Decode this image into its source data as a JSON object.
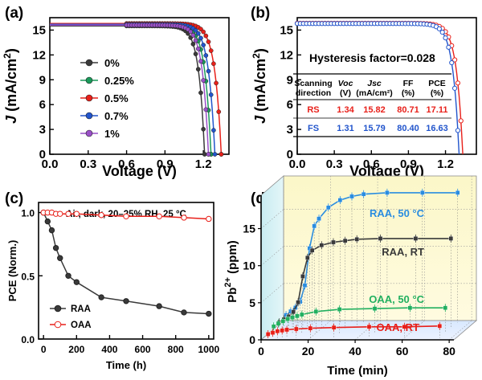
{
  "chart_data": [
    {
      "panel": "a",
      "type": "line",
      "panel_label": "(a)",
      "xlabel": "Voltage (V)",
      "ylabel_italic": "J",
      "ylabel_rest": " (mA/cm",
      "ylabel_sup": "2",
      "ylabel_end": ")",
      "xlim": [
        0,
        1.4
      ],
      "ylim": [
        0,
        16.5
      ],
      "xticks": [
        "0.0",
        "0.3",
        "0.6",
        "0.9",
        "1.2"
      ],
      "xtick_values": [
        0,
        0.3,
        0.6,
        0.9,
        1.2
      ],
      "yticks": [
        "0",
        "3",
        "6",
        "9",
        "12",
        "15"
      ],
      "ytick_values": [
        0,
        3,
        6,
        9,
        12,
        15
      ],
      "series": [
        {
          "name": "0%",
          "color": "#3a3a3a",
          "marker": "circle",
          "jsc": 15.5,
          "voc": 1.21
        },
        {
          "name": "0.25%",
          "color": "#1a9a5a",
          "marker": "circle",
          "jsc": 15.6,
          "voc": 1.26
        },
        {
          "name": "0.5%",
          "color": "#e8201a",
          "marker": "circle",
          "jsc": 15.8,
          "voc": 1.34
        },
        {
          "name": "0.7%",
          "color": "#2255cc",
          "marker": "circle",
          "jsc": 15.7,
          "voc": 1.29
        },
        {
          "name": "1%",
          "color": "#9a50c8",
          "marker": "circle",
          "jsc": 15.6,
          "voc": 1.24
        }
      ]
    },
    {
      "panel": "b",
      "type": "line",
      "panel_label": "(b)",
      "xlabel": "Voltage (V)",
      "ylabel_italic": "J",
      "ylabel_rest": " (mA/cm",
      "ylabel_sup": "2",
      "ylabel_end": ")",
      "xlim": [
        0,
        1.45
      ],
      "ylim": [
        0,
        16.5
      ],
      "xticks": [
        "0.0",
        "0.3",
        "0.6",
        "0.9",
        "1.2"
      ],
      "xtick_values": [
        0,
        0.3,
        0.6,
        0.9,
        1.2
      ],
      "yticks": [
        "0",
        "3",
        "6",
        "9",
        "12",
        "15"
      ],
      "ytick_values": [
        0,
        3,
        6,
        9,
        12,
        15
      ],
      "annotation": "Hysteresis factor=0.028",
      "table": {
        "headers": [
          [
            "Scanning",
            "direction"
          ],
          [
            "Voc",
            "(V)"
          ],
          [
            "Jsc",
            "(mA/cm²)"
          ],
          [
            "FF",
            "(%)"
          ],
          [
            "PCE",
            "(%)"
          ]
        ],
        "rows": [
          {
            "color": "#e8201a",
            "cells": [
              "RS",
              "1.34",
              "15.82",
              "80.71",
              "17.11"
            ]
          },
          {
            "color": "#2255cc",
            "cells": [
              "FS",
              "1.31",
              "15.79",
              "80.40",
              "16.63"
            ]
          }
        ]
      },
      "series": [
        {
          "name": "RS",
          "color": "#e8201a",
          "marker": "circle-open",
          "jsc": 15.82,
          "voc": 1.34
        },
        {
          "name": "FS",
          "color": "#2255cc",
          "marker": "circle-open",
          "jsc": 15.79,
          "voc": 1.31
        }
      ]
    },
    {
      "panel": "c",
      "type": "line",
      "panel_label": "(c)",
      "xlabel": "Time (h)",
      "ylabel": "PCE (Norm.)",
      "title": "Air, dark, 20–25% RH, 25 °C",
      "xlim": [
        -30,
        1030
      ],
      "ylim": [
        0.0,
        1.08
      ],
      "xticks": [
        "0",
        "200",
        "400",
        "600",
        "800",
        "1000"
      ],
      "xtick_values": [
        0,
        200,
        400,
        600,
        800,
        1000
      ],
      "yticks": [
        "0.0",
        "0.5",
        "1.0"
      ],
      "ytick_values": [
        0.0,
        0.5,
        1.0
      ],
      "series": [
        {
          "name": "RAA",
          "color": "#3a3a3a",
          "marker": "circle",
          "x": [
            0,
            25,
            50,
            75,
            100,
            150,
            200,
            350,
            500,
            700,
            850,
            1000
          ],
          "y": [
            1.0,
            0.93,
            0.86,
            0.72,
            0.64,
            0.5,
            0.45,
            0.33,
            0.3,
            0.26,
            0.21,
            0.2
          ]
        },
        {
          "name": "OAA",
          "color": "#e8201a",
          "marker": "circle-open",
          "x": [
            0,
            25,
            50,
            75,
            100,
            150,
            200,
            350,
            500,
            700,
            850,
            1000
          ],
          "y": [
            1.0,
            1.0,
            1.0,
            0.99,
            0.99,
            0.99,
            0.99,
            0.98,
            0.97,
            0.97,
            0.96,
            0.95
          ]
        }
      ]
    },
    {
      "panel": "d",
      "type": "line",
      "panel_label": "(d)",
      "xlabel": "Time (min)",
      "ylabel": "Pb",
      "ylabel_sup": "2+",
      "ylabel_end": " (ppm)",
      "xlim": [
        0,
        82
      ],
      "ylim": [
        0,
        19.5
      ],
      "xticks": [
        "0",
        "20",
        "40",
        "60",
        "80"
      ],
      "xtick_values": [
        0,
        20,
        40,
        60,
        80
      ],
      "yticks": [
        "0",
        "5",
        "10",
        "15"
      ],
      "ytick_values": [
        0,
        5,
        10,
        15
      ],
      "series": [
        {
          "name": "RAA, 50 °C",
          "color": "#2a8de0",
          "label_color": "#2a8de0",
          "x": [
            2,
            4,
            6,
            8,
            10,
            12,
            14,
            16,
            20,
            25,
            30,
            35,
            45,
            60,
            75
          ],
          "y": [
            1.0,
            1.5,
            2.0,
            2.8,
            5.0,
            10.0,
            13.0,
            14.0,
            15.5,
            16.5,
            17.0,
            17.3,
            17.5,
            17.5,
            17.5
          ]
        },
        {
          "name": "RAA, RT",
          "color": "#3a3a3a",
          "label_color": "#3a3a3a",
          "x": [
            2,
            4,
            6,
            8,
            10,
            12,
            14,
            16,
            20,
            25,
            30,
            35,
            45,
            60,
            75
          ],
          "y": [
            0.8,
            1.2,
            1.6,
            2.2,
            3.5,
            7.0,
            9.5,
            10.5,
            11.2,
            11.6,
            11.8,
            12.0,
            12.1,
            12.1,
            12.1
          ]
        },
        {
          "name": "OAA, 50 °C",
          "color": "#22b060",
          "label_color": "#22b060",
          "x": [
            2,
            4,
            6,
            8,
            10,
            12,
            14,
            20,
            30,
            45,
            60,
            75
          ],
          "y": [
            0.9,
            1.3,
            1.6,
            1.9,
            2.1,
            2.3,
            2.5,
            2.9,
            3.2,
            3.3,
            3.4,
            3.4
          ]
        },
        {
          "name": "OAA, RT",
          "color": "#e8201a",
          "label_color": "#e8201a",
          "x": [
            2,
            4,
            6,
            8,
            10,
            14,
            20,
            30,
            45,
            60,
            75
          ],
          "y": [
            0.5,
            0.7,
            0.9,
            1.0,
            1.1,
            1.2,
            1.3,
            1.4,
            1.5,
            1.5,
            1.6
          ]
        }
      ]
    }
  ]
}
